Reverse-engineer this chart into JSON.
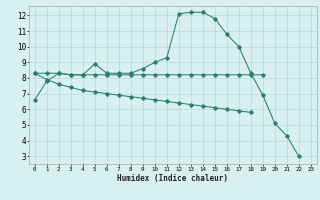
{
  "title": "",
  "xlabel": "Humidex (Indice chaleur)",
  "ylabel": "",
  "bg_color": "#d8f0f0",
  "line_color": "#2e7d6e",
  "grid_color": "#b8d8d8",
  "xlim": [
    -0.5,
    23.5
  ],
  "ylim": [
    2.5,
    12.6
  ],
  "xticks": [
    0,
    1,
    2,
    3,
    4,
    5,
    6,
    7,
    8,
    9,
    10,
    11,
    12,
    13,
    14,
    15,
    16,
    17,
    18,
    19,
    20,
    21,
    22,
    23
  ],
  "yticks": [
    3,
    4,
    5,
    6,
    7,
    8,
    9,
    10,
    11,
    12
  ],
  "curve1_x": [
    0,
    1,
    2,
    3,
    4,
    5,
    6,
    7,
    8,
    9,
    10,
    11,
    12,
    13,
    14,
    15,
    16,
    17,
    18,
    19,
    20,
    21,
    22
  ],
  "curve1_y": [
    6.6,
    7.8,
    8.3,
    8.2,
    8.2,
    8.9,
    8.3,
    8.3,
    8.3,
    8.6,
    9.0,
    9.3,
    12.1,
    12.2,
    12.2,
    11.8,
    10.8,
    10.0,
    8.3,
    6.9,
    5.1,
    4.3,
    3.0
  ],
  "curve2_x": [
    0,
    1,
    2,
    3,
    4,
    5,
    6,
    7,
    8,
    9,
    10,
    11,
    12,
    13,
    14,
    15,
    16,
    17,
    18,
    19
  ],
  "curve2_y": [
    8.3,
    8.3,
    8.3,
    8.2,
    8.2,
    8.2,
    8.2,
    8.2,
    8.2,
    8.2,
    8.2,
    8.2,
    8.2,
    8.2,
    8.2,
    8.2,
    8.2,
    8.2,
    8.2,
    8.2
  ],
  "curve3_x": [
    0,
    1,
    2,
    3,
    4,
    5,
    6,
    7,
    8,
    9,
    10,
    11,
    12,
    13,
    14,
    15,
    16,
    17,
    18
  ],
  "curve3_y": [
    8.3,
    7.9,
    7.6,
    7.4,
    7.2,
    7.1,
    7.0,
    6.9,
    6.8,
    6.7,
    6.6,
    6.5,
    6.4,
    6.3,
    6.2,
    6.1,
    6.0,
    5.9,
    5.8
  ]
}
